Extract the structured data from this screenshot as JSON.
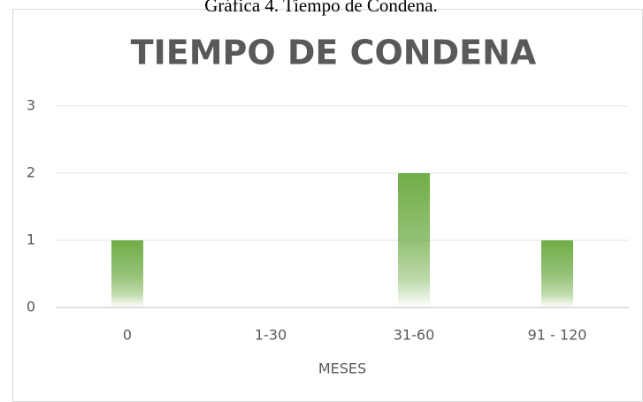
{
  "caption": "Gráfica 4. Tiempo de Condena.",
  "chart_data": {
    "type": "bar",
    "title": "TIEMPO DE CONDENA",
    "x_label": "MESES",
    "categories": [
      "0",
      "1-30",
      "31-60",
      "91 - 120"
    ],
    "values": [
      1,
      0,
      2,
      1
    ],
    "color": "#70ad47",
    "ylim": [
      0,
      3
    ],
    "yticks": [
      0,
      1,
      2,
      3
    ],
    "grid": true
  }
}
